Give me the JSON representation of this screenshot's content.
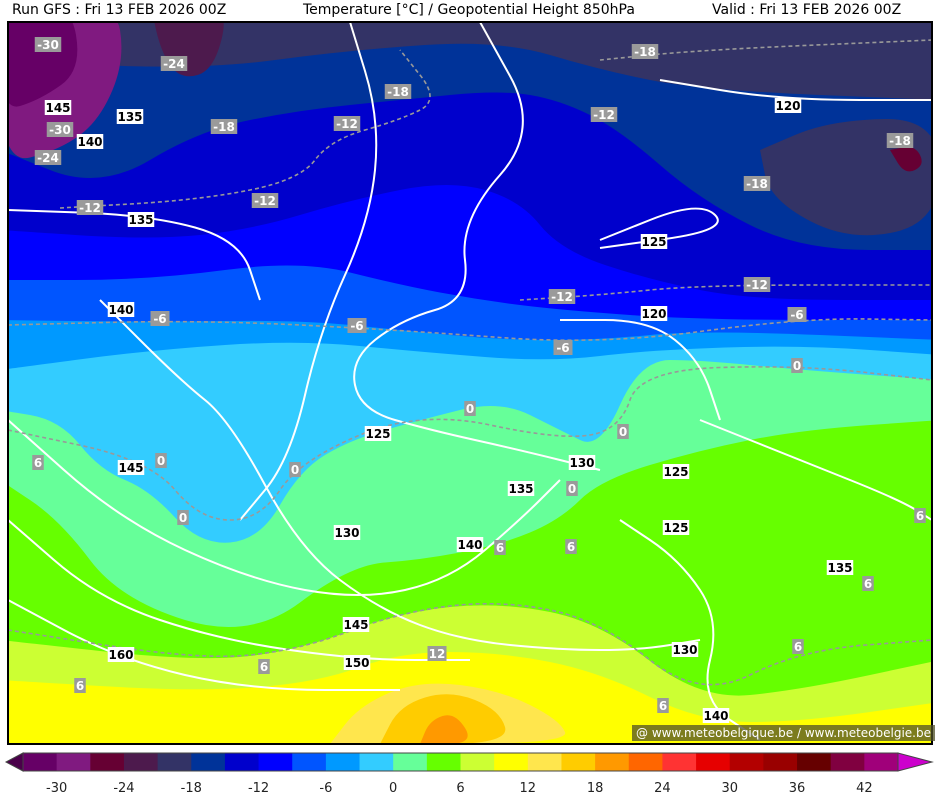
{
  "header": {
    "run": "Run GFS : Fri 13 FEB 2026 00Z",
    "title": "Temperature [°C] / Geopotential Height 850hPa",
    "valid": "Valid : Fri 13 FEB 2026 00Z"
  },
  "credit": "@ www.meteobelgique.be / www.meteobelgie.be",
  "colorbar": {
    "unit": "°C",
    "min": -33,
    "max": 45,
    "step": 3,
    "below_color": "#4a004a",
    "above_color": "#cc00cc",
    "colors": [
      "#660066",
      "#801a80",
      "#660033",
      "#4d1a4d",
      "#333366",
      "#003399",
      "#0000cc",
      "#0000ff",
      "#0055ff",
      "#0099ff",
      "#33ccff",
      "#66ff99",
      "#66ff00",
      "#ccff33",
      "#ffff00",
      "#ffe64d",
      "#ffcc00",
      "#ff9900",
      "#ff6600",
      "#ff3333",
      "#e60000",
      "#b30000",
      "#990000",
      "#660000",
      "#800040",
      "#a0007a"
    ],
    "tick_labels": [
      "-30",
      "-24",
      "-18",
      "-12",
      "-6",
      "0",
      "6",
      "12",
      "18",
      "24",
      "30",
      "36",
      "42"
    ]
  },
  "height_labels": [
    "135",
    "140",
    "135",
    "140",
    "125",
    "145",
    "130",
    "140",
    "135",
    "130",
    "125",
    "125",
    "135",
    "130",
    "150",
    "145",
    "160",
    "140",
    "120",
    "125",
    "120",
    "145"
  ],
  "temperature_labels": [
    "-30",
    "-24",
    "-30",
    "-24",
    "-18",
    "-12",
    "-12",
    "-18",
    "-12",
    "-18",
    "-12",
    "-18",
    "-18",
    "-12",
    "-12",
    "-6",
    "-6",
    "-6",
    "-6",
    "0",
    "0",
    "0",
    "0",
    "0",
    "0",
    "6",
    "6",
    "6",
    "6",
    "6",
    "12",
    "6",
    "6",
    "6",
    "6",
    "0"
  ]
}
